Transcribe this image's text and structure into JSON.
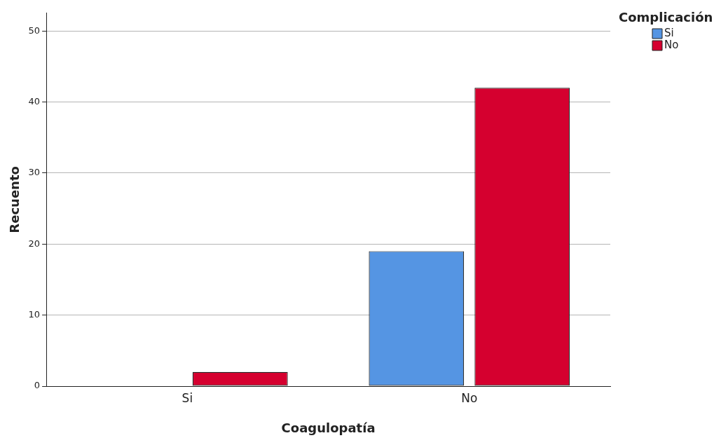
{
  "chart_data": {
    "type": "bar",
    "xlabel": "Coagulopatía",
    "ylabel": "Recuento",
    "legend_title": "Complicación",
    "categories": [
      "Si",
      "No"
    ],
    "series": [
      {
        "name": "Si",
        "color": "#5595e3",
        "values": [
          0,
          19
        ]
      },
      {
        "name": "No",
        "color": "#d5002f",
        "values": [
          2,
          42
        ]
      }
    ],
    "ylim": [
      0,
      52.5
    ],
    "yticks": [
      0,
      10,
      20,
      30,
      40,
      50
    ],
    "grid": "y",
    "legend": "top right"
  }
}
